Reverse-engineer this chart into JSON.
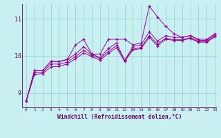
{
  "xlabel": "Windchill (Refroidissement éolien,°C)",
  "bg_color": "#c8f0f0",
  "line_color": "#990099",
  "grid_color": "#a0d8d8",
  "axis_color": "#660066",
  "xlim": [
    -0.5,
    23.2
  ],
  "ylim": [
    8.6,
    11.4
  ],
  "yticks": [
    9,
    10,
    11
  ],
  "xticks": [
    0,
    1,
    2,
    3,
    4,
    5,
    6,
    7,
    8,
    9,
    10,
    11,
    12,
    13,
    14,
    15,
    16,
    17,
    18,
    19,
    20,
    21,
    22,
    23
  ],
  "series": [
    [
      8.78,
      9.6,
      9.6,
      9.85,
      9.85,
      9.9,
      10.3,
      10.45,
      10.05,
      10.05,
      10.45,
      10.45,
      10.45,
      10.3,
      10.35,
      11.35,
      11.05,
      10.8,
      10.6,
      10.5,
      10.55,
      10.45,
      10.45,
      10.6
    ],
    [
      8.78,
      9.6,
      9.6,
      9.85,
      9.85,
      9.9,
      10.05,
      10.25,
      10.05,
      9.95,
      10.2,
      10.35,
      9.88,
      10.25,
      10.3,
      10.65,
      10.4,
      10.55,
      10.5,
      10.5,
      10.55,
      10.42,
      10.42,
      10.58
    ],
    [
      8.78,
      9.55,
      9.55,
      9.78,
      9.78,
      9.83,
      9.98,
      10.15,
      10.02,
      9.93,
      10.12,
      10.28,
      9.88,
      10.18,
      10.23,
      10.55,
      10.32,
      10.48,
      10.44,
      10.44,
      10.49,
      10.39,
      10.39,
      10.54
    ],
    [
      8.78,
      9.5,
      9.52,
      9.7,
      9.72,
      9.78,
      9.92,
      10.08,
      9.98,
      9.88,
      10.07,
      10.22,
      9.85,
      10.16,
      10.2,
      10.5,
      10.27,
      10.45,
      10.42,
      10.42,
      10.47,
      10.37,
      10.37,
      10.52
    ]
  ]
}
